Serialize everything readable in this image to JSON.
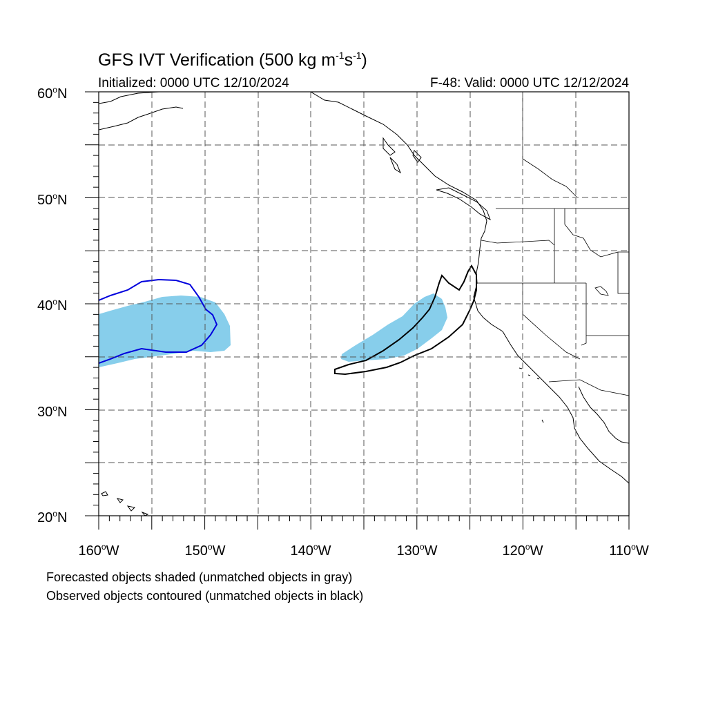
{
  "title": {
    "main": "GFS IVT Verification (500 kg m",
    "exp1": "-1",
    "mid": "s",
    "exp2": "-1",
    "end": ")"
  },
  "initialized": "Initialized: 0000 UTC 12/10/2024",
  "valid": "F-48: Valid: 0000 UTC 12/12/2024",
  "latitude_labels": [
    {
      "value": "60",
      "suffix": "N"
    },
    {
      "value": "50",
      "suffix": "N"
    },
    {
      "value": "40",
      "suffix": "N"
    },
    {
      "value": "30",
      "suffix": "N"
    },
    {
      "value": "20",
      "suffix": "N"
    }
  ],
  "longitude_labels": [
    {
      "value": "160",
      "suffix": "W"
    },
    {
      "value": "150",
      "suffix": "W"
    },
    {
      "value": "140",
      "suffix": "W"
    },
    {
      "value": "130",
      "suffix": "W"
    },
    {
      "value": "120",
      "suffix": "W"
    },
    {
      "value": "110",
      "suffix": "W"
    }
  ],
  "degree_symbol": "o",
  "notes": [
    "Forecasted objects shaded (unmatched objects in gray)",
    "Observed objects contoured (unmatched objects in black)"
  ],
  "map": {
    "lon_range": [
      -160,
      -110
    ],
    "lat_range": [
      20,
      60
    ],
    "grid_spacing_deg": 5,
    "grid": true
  },
  "colors": {
    "forecast_fill": "#87ceeb",
    "observed_matched": "#0000dd",
    "observed_unmatched": "#000000",
    "coastline": "#000000",
    "grid": "#555555"
  }
}
